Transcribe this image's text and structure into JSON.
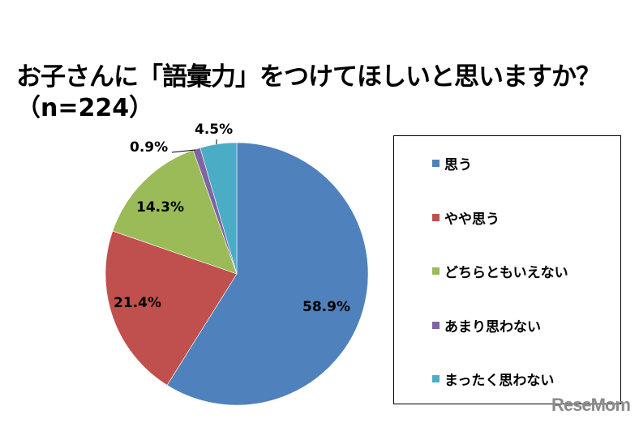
{
  "title": "お子さんに「語彙力」をつけてほしいと思いますか？",
  "subtitle": "（n=224）",
  "watermark": "ReseMom",
  "legend": [
    {
      "label": "思う",
      "color": "#4F81BD"
    },
    {
      "label": "やや思う",
      "color": "#C0504D"
    },
    {
      "label": "どちらともいえない",
      "color": "#9BBB59"
    },
    {
      "label": "あまり思わない",
      "color": "#8064A2"
    },
    {
      "label": "まったく思わない",
      "color": "#4BACC6"
    }
  ],
  "labels": {
    "s0": "58.9%",
    "s1": "21.4%",
    "s2": "14.3%",
    "s3": "0.9%",
    "s4": "4.5%"
  },
  "chart_data": {
    "type": "pie",
    "title": "お子さんに「語彙力」をつけてほしいと思いますか？（n=224）",
    "categories": [
      "思う",
      "やや思う",
      "どちらともいえない",
      "あまり思わない",
      "まったく思わない"
    ],
    "values": [
      58.9,
      21.4,
      14.3,
      0.9,
      4.5
    ],
    "unit": "%",
    "colors": [
      "#4F81BD",
      "#C0504D",
      "#9BBB59",
      "#8064A2",
      "#4BACC6"
    ],
    "start_angle": "12 o'clock, clockwise",
    "legend_position": "right",
    "n": 224
  }
}
